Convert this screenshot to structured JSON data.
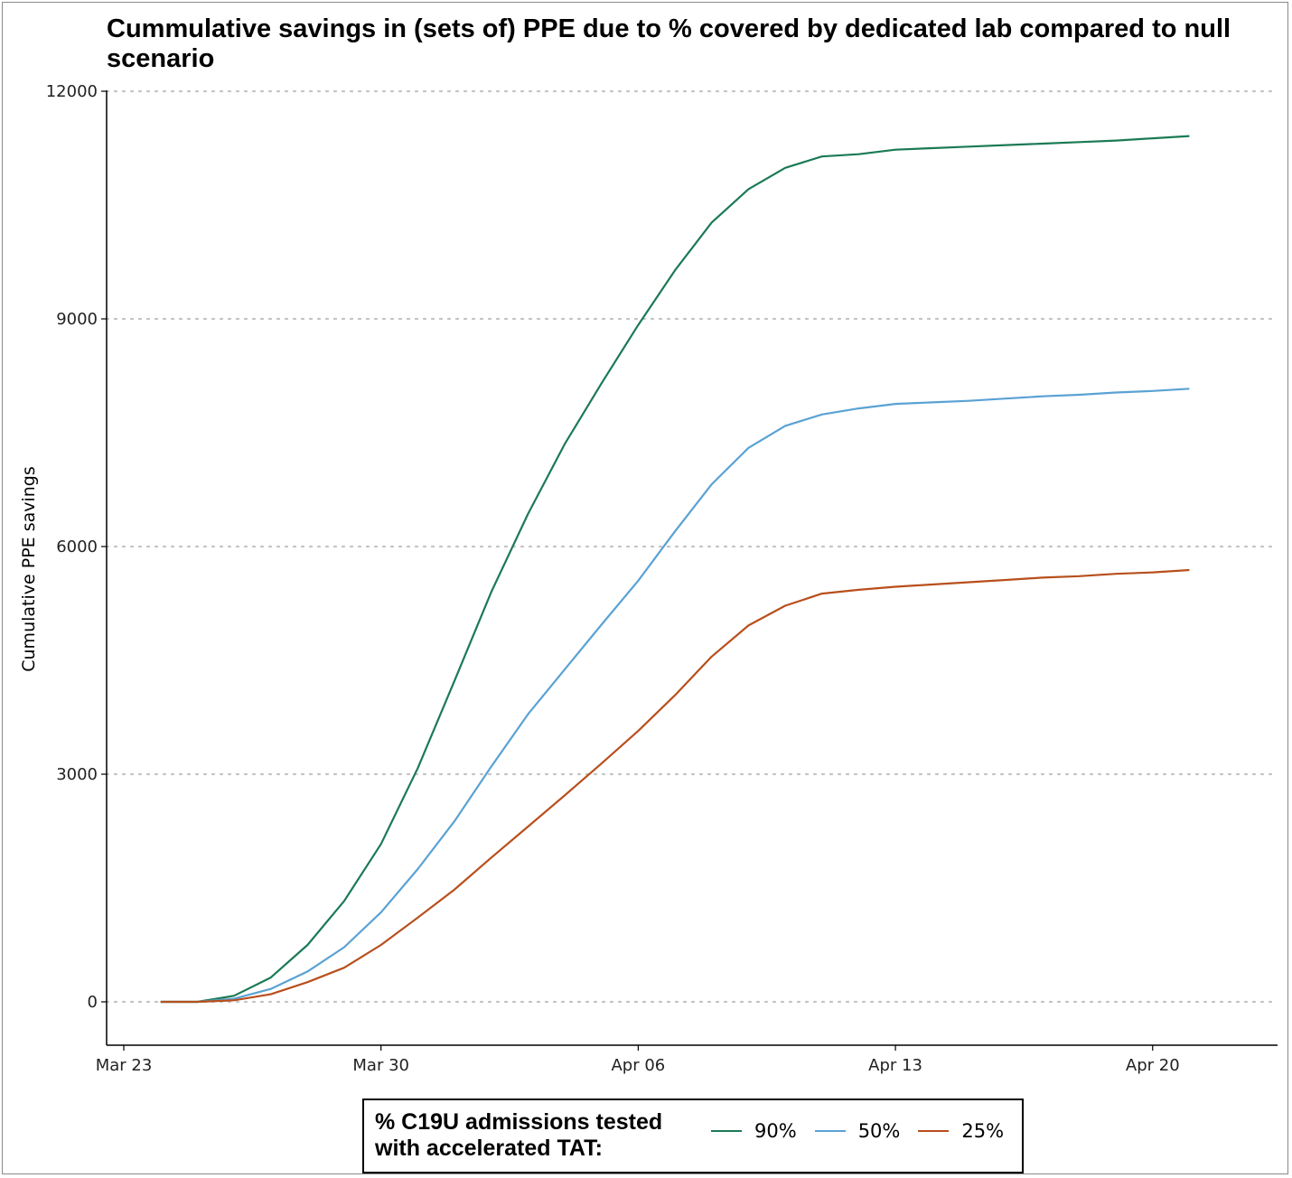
{
  "chart_data": {
    "type": "line",
    "title": "Cummulative savings in (sets of) PPE due to % covered by dedicated lab compared to null scenario",
    "xlabel": "",
    "ylabel": "Cumulative PPE savings",
    "x_ticks": [
      "Mar 23",
      "Mar 30",
      "Apr 06",
      "Apr 13",
      "Apr 20"
    ],
    "y_ticks": [
      "0",
      "3000",
      "6000",
      "9000",
      "12000"
    ],
    "ylim": [
      -550,
      12000
    ],
    "grid": "horizontal dotted",
    "legend": {
      "title": "% C19U admissions tested with accelerated TAT:",
      "placement": "bottom"
    },
    "x": [
      "Mar 24",
      "Mar 25",
      "Mar 26",
      "Mar 27",
      "Mar 28",
      "Mar 29",
      "Mar 30",
      "Mar 31",
      "Apr 01",
      "Apr 02",
      "Apr 03",
      "Apr 04",
      "Apr 05",
      "Apr 06",
      "Apr 07",
      "Apr 08",
      "Apr 09",
      "Apr 10",
      "Apr 11",
      "Apr 12",
      "Apr 13",
      "Apr 14",
      "Apr 15",
      "Apr 16",
      "Apr 17",
      "Apr 18",
      "Apr 19",
      "Apr 20",
      "Apr 21"
    ],
    "series": [
      {
        "name": "90%",
        "color": "#1b7a55",
        "values": [
          0,
          0,
          80,
          320,
          750,
          1330,
          2080,
          3080,
          4230,
          5400,
          6430,
          7350,
          8150,
          8920,
          9640,
          10270,
          10710,
          10990,
          11140,
          11170,
          11230,
          11250,
          11270,
          11290,
          11310,
          11330,
          11350,
          11380,
          11410
        ]
      },
      {
        "name": "50%",
        "color": "#5aa2d4",
        "values": [
          0,
          0,
          40,
          170,
          400,
          720,
          1180,
          1750,
          2380,
          3100,
          3790,
          4380,
          4970,
          5550,
          6200,
          6820,
          7300,
          7590,
          7740,
          7820,
          7880,
          7900,
          7920,
          7950,
          7980,
          8000,
          8030,
          8050,
          8080
        ]
      },
      {
        "name": "25%",
        "color": "#b84f1c",
        "values": [
          0,
          0,
          20,
          100,
          260,
          450,
          750,
          1110,
          1480,
          1900,
          2310,
          2720,
          3140,
          3570,
          4040,
          4550,
          4960,
          5220,
          5380,
          5430,
          5470,
          5500,
          5530,
          5560,
          5590,
          5610,
          5640,
          5660,
          5690
        ]
      }
    ]
  }
}
